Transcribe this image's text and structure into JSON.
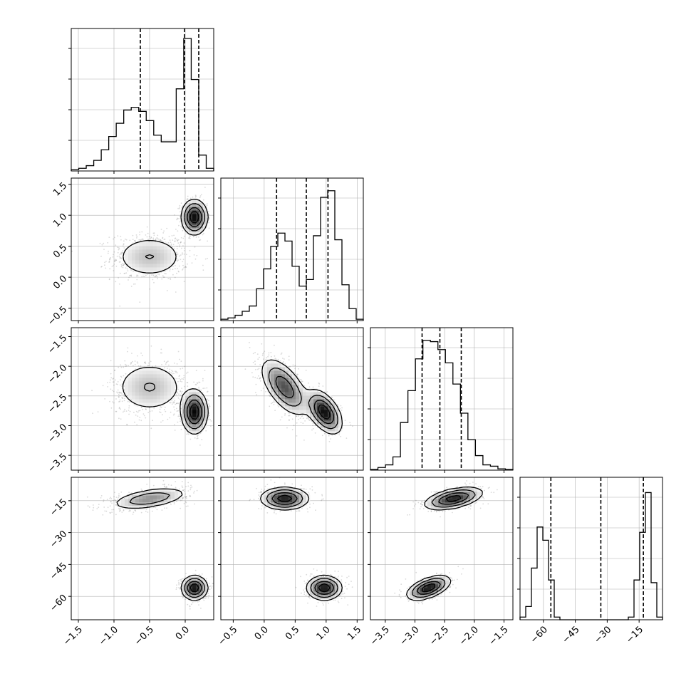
{
  "chart_data": {
    "type": "corner",
    "colors": {
      "line": "#000000",
      "grid": "#b0b0b0",
      "scatter": "#555555"
    },
    "parameters": [
      {
        "range": [
          -1.6,
          0.4
        ],
        "ticks": [
          -1.5,
          -1.0,
          -0.5,
          0.0
        ],
        "tick_labels": [
          "−1.5",
          "−1.0",
          "−0.5",
          "0.0"
        ],
        "quantiles": [
          -0.63,
          -0.01,
          0.19
        ]
      },
      {
        "range": [
          -0.7,
          1.6
        ],
        "ticks": [
          -0.5,
          0.0,
          0.5,
          1.0,
          1.5
        ],
        "tick_labels": [
          "−0.5",
          "0.0",
          "0.5",
          "1.0",
          "1.5"
        ],
        "quantiles": [
          0.2,
          0.68,
          1.03
        ]
      },
      {
        "range": [
          -3.75,
          -1.35
        ],
        "ticks": [
          -3.5,
          -3.0,
          -2.5,
          -2.0,
          -1.5
        ],
        "tick_labels": [
          "−3.5",
          "−3.0",
          "−2.5",
          "−2.0",
          "−1.5"
        ],
        "quantiles": [
          -2.88,
          -2.58,
          -2.22
        ]
      },
      {
        "range": [
          -71,
          -4
        ],
        "ticks": [
          -60,
          -45,
          -30,
          -15
        ],
        "tick_labels": [
          "−60",
          "−45",
          "−30",
          "−15"
        ],
        "quantiles": [
          -56.5,
          -33.0,
          -13.0
        ]
      }
    ],
    "histograms": [
      {
        "counts": [
          0.01,
          0.02,
          0.04,
          0.08,
          0.16,
          0.26,
          0.36,
          0.46,
          0.48,
          0.45,
          0.38,
          0.27,
          0.22,
          0.22,
          0.62,
          1.0,
          0.69,
          0.12,
          0.02
        ]
      },
      {
        "counts": [
          0.01,
          0.02,
          0.04,
          0.07,
          0.11,
          0.24,
          0.39,
          0.56,
          0.66,
          0.6,
          0.41,
          0.26,
          0.31,
          0.64,
          0.93,
          0.98,
          0.61,
          0.27,
          0.09,
          0.01
        ]
      },
      {
        "counts": [
          0.005,
          0.02,
          0.04,
          0.1,
          0.36,
          0.6,
          0.84,
          0.98,
          0.97,
          0.91,
          0.81,
          0.65,
          0.43,
          0.23,
          0.11,
          0.04,
          0.03,
          0.01,
          0.005
        ]
      },
      {
        "counts": [
          0.02,
          0.1,
          0.39,
          0.7,
          0.6,
          0.3,
          0.02,
          0.0,
          0.0,
          0.0,
          0.0,
          0.0,
          0.0,
          0.0,
          0.0,
          0.0,
          0.0,
          0.0,
          0.0,
          0.02,
          0.3,
          0.66,
          0.96,
          0.28,
          0.02
        ]
      }
    ],
    "modes": [
      {
        "weight": 0.55,
        "mean": [
          -0.5,
          0.33,
          -2.35,
          -14.0
        ],
        "sd": [
          0.27,
          0.19,
          0.24,
          2.6
        ],
        "corr": {
          "0-3": 0.5,
          "1-2": -0.6,
          "2-3": 0.5
        }
      },
      {
        "weight": 0.45,
        "mean": [
          0.13,
          0.97,
          -2.77,
          -56.0
        ],
        "sd": [
          0.09,
          0.14,
          0.18,
          2.8
        ],
        "corr": {
          "1-2": -0.5,
          "2-3": 0.55
        }
      }
    ]
  }
}
